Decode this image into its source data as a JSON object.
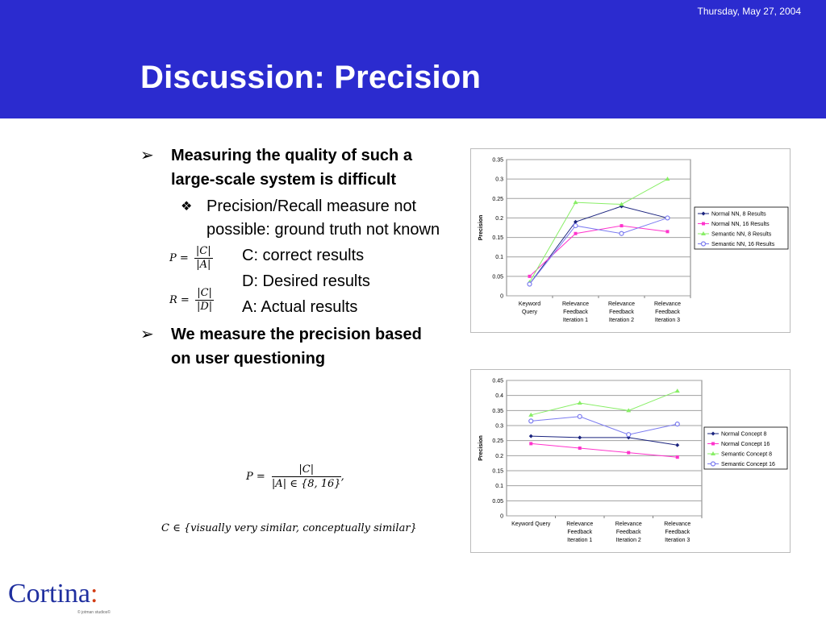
{
  "header": {
    "date": "Thursday, May 27, 2004",
    "title": "Discussion: Precision"
  },
  "bullets": {
    "b1_mark": "➢",
    "b1": "Measuring the quality of such a large-scale system is difficult",
    "sub_mark": "❖",
    "sub": "Precision/Recall measure not possible: ground truth not known",
    "b2_mark": "➢",
    "b2": "We measure the precision based on user questioning"
  },
  "formulas": {
    "p_lhs": "P =",
    "p_num": "|C|",
    "p_den": "|A|",
    "r_lhs": "R =",
    "r_num": "|C|",
    "r_den": "|D|",
    "def_c": "C: correct results",
    "def_d": "D: Desired results",
    "def_a": "A: Actual results",
    "eq1_lhs": "P =",
    "eq1_num": "|C|",
    "eq1_den": "|A| ∈ {8, 16}",
    "eq1_tail": ",",
    "eq2": "C ∈ {visually very similar, conceptually similar}"
  },
  "logo": {
    "text": "Cortina",
    "colon": ":",
    "copyright": "© jotman studios©"
  },
  "colors": {
    "header_bg": "#2b2bcf",
    "series": [
      "#1a237e",
      "#ff33cc",
      "#88ee66",
      "#7b7bf0"
    ]
  },
  "chart_data": [
    {
      "type": "line",
      "categories": [
        [
          "Keyword",
          "Query"
        ],
        [
          "Relevance",
          "Feedback",
          "Iteration 1"
        ],
        [
          "Relevance",
          "Feedback",
          "Iteration 2"
        ],
        [
          "Relevance",
          "Feedback",
          "Iteration 3"
        ]
      ],
      "ylabel": "Precision",
      "ylim": [
        0,
        0.35
      ],
      "yticks": [
        "0",
        "0.05",
        "0.1",
        "0.15",
        "0.2",
        "0.25",
        "0.3",
        "0.35"
      ],
      "grid": true,
      "legend": "right",
      "series": [
        {
          "name": "Normal NN, 8 Results",
          "marker": "diamond",
          "values": [
            0.03,
            0.19,
            0.23,
            0.2
          ]
        },
        {
          "name": "Normal NN, 16 Results",
          "marker": "square",
          "values": [
            0.05,
            0.16,
            0.18,
            0.165
          ]
        },
        {
          "name": "Semantic NN, 8 Results",
          "marker": "triangle",
          "values": [
            0.035,
            0.24,
            0.235,
            0.3
          ]
        },
        {
          "name": "Semantic NN, 16 Results",
          "marker": "circle",
          "values": [
            0.03,
            0.18,
            0.16,
            0.2
          ]
        }
      ]
    },
    {
      "type": "line",
      "categories": [
        [
          "Keyword Query"
        ],
        [
          "Relevance",
          "Feedback",
          "Iteration 1"
        ],
        [
          "Relevance",
          "Feedback",
          "Iteration 2"
        ],
        [
          "Relevance",
          "Feedback",
          "Iteration 3"
        ]
      ],
      "ylabel": "Precision",
      "ylim": [
        0,
        0.45
      ],
      "yticks": [
        "0",
        "0.05",
        "0.1",
        "0.15",
        "0.2",
        "0.25",
        "0.3",
        "0.35",
        "0.4",
        "0.45"
      ],
      "grid": true,
      "legend": "right",
      "series": [
        {
          "name": "Normal Concept 8",
          "marker": "diamond",
          "values": [
            0.265,
            0.26,
            0.26,
            0.235
          ]
        },
        {
          "name": "Normal Concept 16",
          "marker": "square",
          "values": [
            0.24,
            0.225,
            0.21,
            0.195
          ]
        },
        {
          "name": "Semantic Concept 8",
          "marker": "triangle",
          "values": [
            0.335,
            0.375,
            0.35,
            0.415
          ]
        },
        {
          "name": "Semantic Concept 16",
          "marker": "circle",
          "values": [
            0.315,
            0.33,
            0.27,
            0.305
          ]
        }
      ]
    }
  ]
}
